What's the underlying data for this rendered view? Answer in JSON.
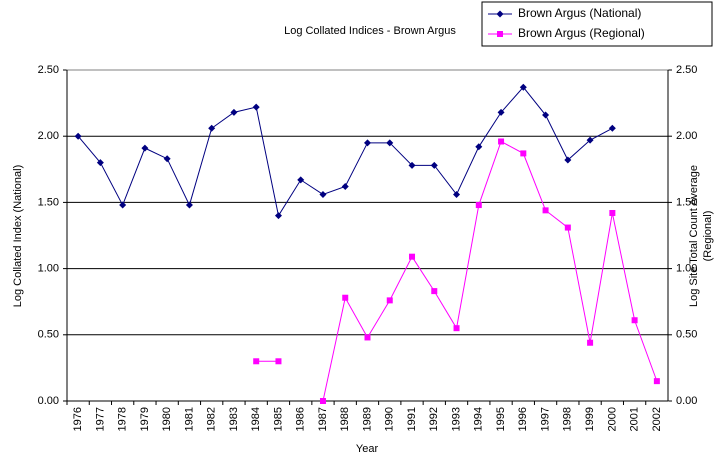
{
  "chart_data": {
    "type": "line",
    "title": "Log Collated Indices - Brown Argus",
    "x_label": "Year",
    "y_label": "Log Collated Index (National)",
    "y2_label": [
      "Log Site Total Count Average",
      "(Regional)"
    ],
    "categories": [
      "1976",
      "1977",
      "1978",
      "1979",
      "1980",
      "1981",
      "1982",
      "1983",
      "1984",
      "1985",
      "1986",
      "1987",
      "1988",
      "1989",
      "1990",
      "1991",
      "1992",
      "1993",
      "1994",
      "1995",
      "1996",
      "1997",
      "1998",
      "1999",
      "2000",
      "2001",
      "2002"
    ],
    "series": [
      {
        "name": "Brown Argus (National)",
        "color": "#000080",
        "marker": "diamond",
        "values": [
          2.0,
          1.8,
          1.48,
          1.91,
          1.83,
          1.48,
          2.06,
          2.18,
          2.22,
          1.4,
          1.67,
          1.56,
          1.62,
          1.95,
          1.95,
          1.78,
          1.78,
          1.56,
          1.92,
          2.18,
          2.37,
          2.16,
          1.82,
          1.97,
          2.06,
          null,
          null
        ]
      },
      {
        "name": "Brown Argus (Regional)",
        "color": "#ff00ff",
        "marker": "square",
        "axis": "y2",
        "values": [
          null,
          null,
          null,
          null,
          null,
          null,
          null,
          null,
          0.3,
          0.3,
          null,
          0.0,
          0.78,
          0.48,
          0.76,
          1.09,
          0.83,
          0.55,
          1.48,
          1.96,
          1.87,
          1.44,
          1.31,
          0.44,
          1.42,
          0.61,
          0.15
        ]
      }
    ],
    "ylim": [
      0,
      2.5
    ],
    "yticks": [
      {
        "value": 0,
        "label": "0.00"
      },
      {
        "value": 0.5,
        "label": "0.50"
      },
      {
        "value": 1,
        "label": "1.00"
      },
      {
        "value": 1.5,
        "label": "1.50"
      },
      {
        "value": 2,
        "label": "2.00"
      },
      {
        "value": 2.5,
        "label": "2.50"
      }
    ],
    "y2lim": [
      0,
      2.5
    ],
    "y2ticks": [
      {
        "value": 0,
        "label": "0.00"
      },
      {
        "value": 0.5,
        "label": "0.50"
      },
      {
        "value": 1,
        "label": "1.00"
      },
      {
        "value": 1.5,
        "label": "1.50"
      },
      {
        "value": 2,
        "label": "2.00"
      },
      {
        "value": 2.5,
        "label": "2.50"
      }
    ],
    "grid": true,
    "legend": "top-right"
  }
}
